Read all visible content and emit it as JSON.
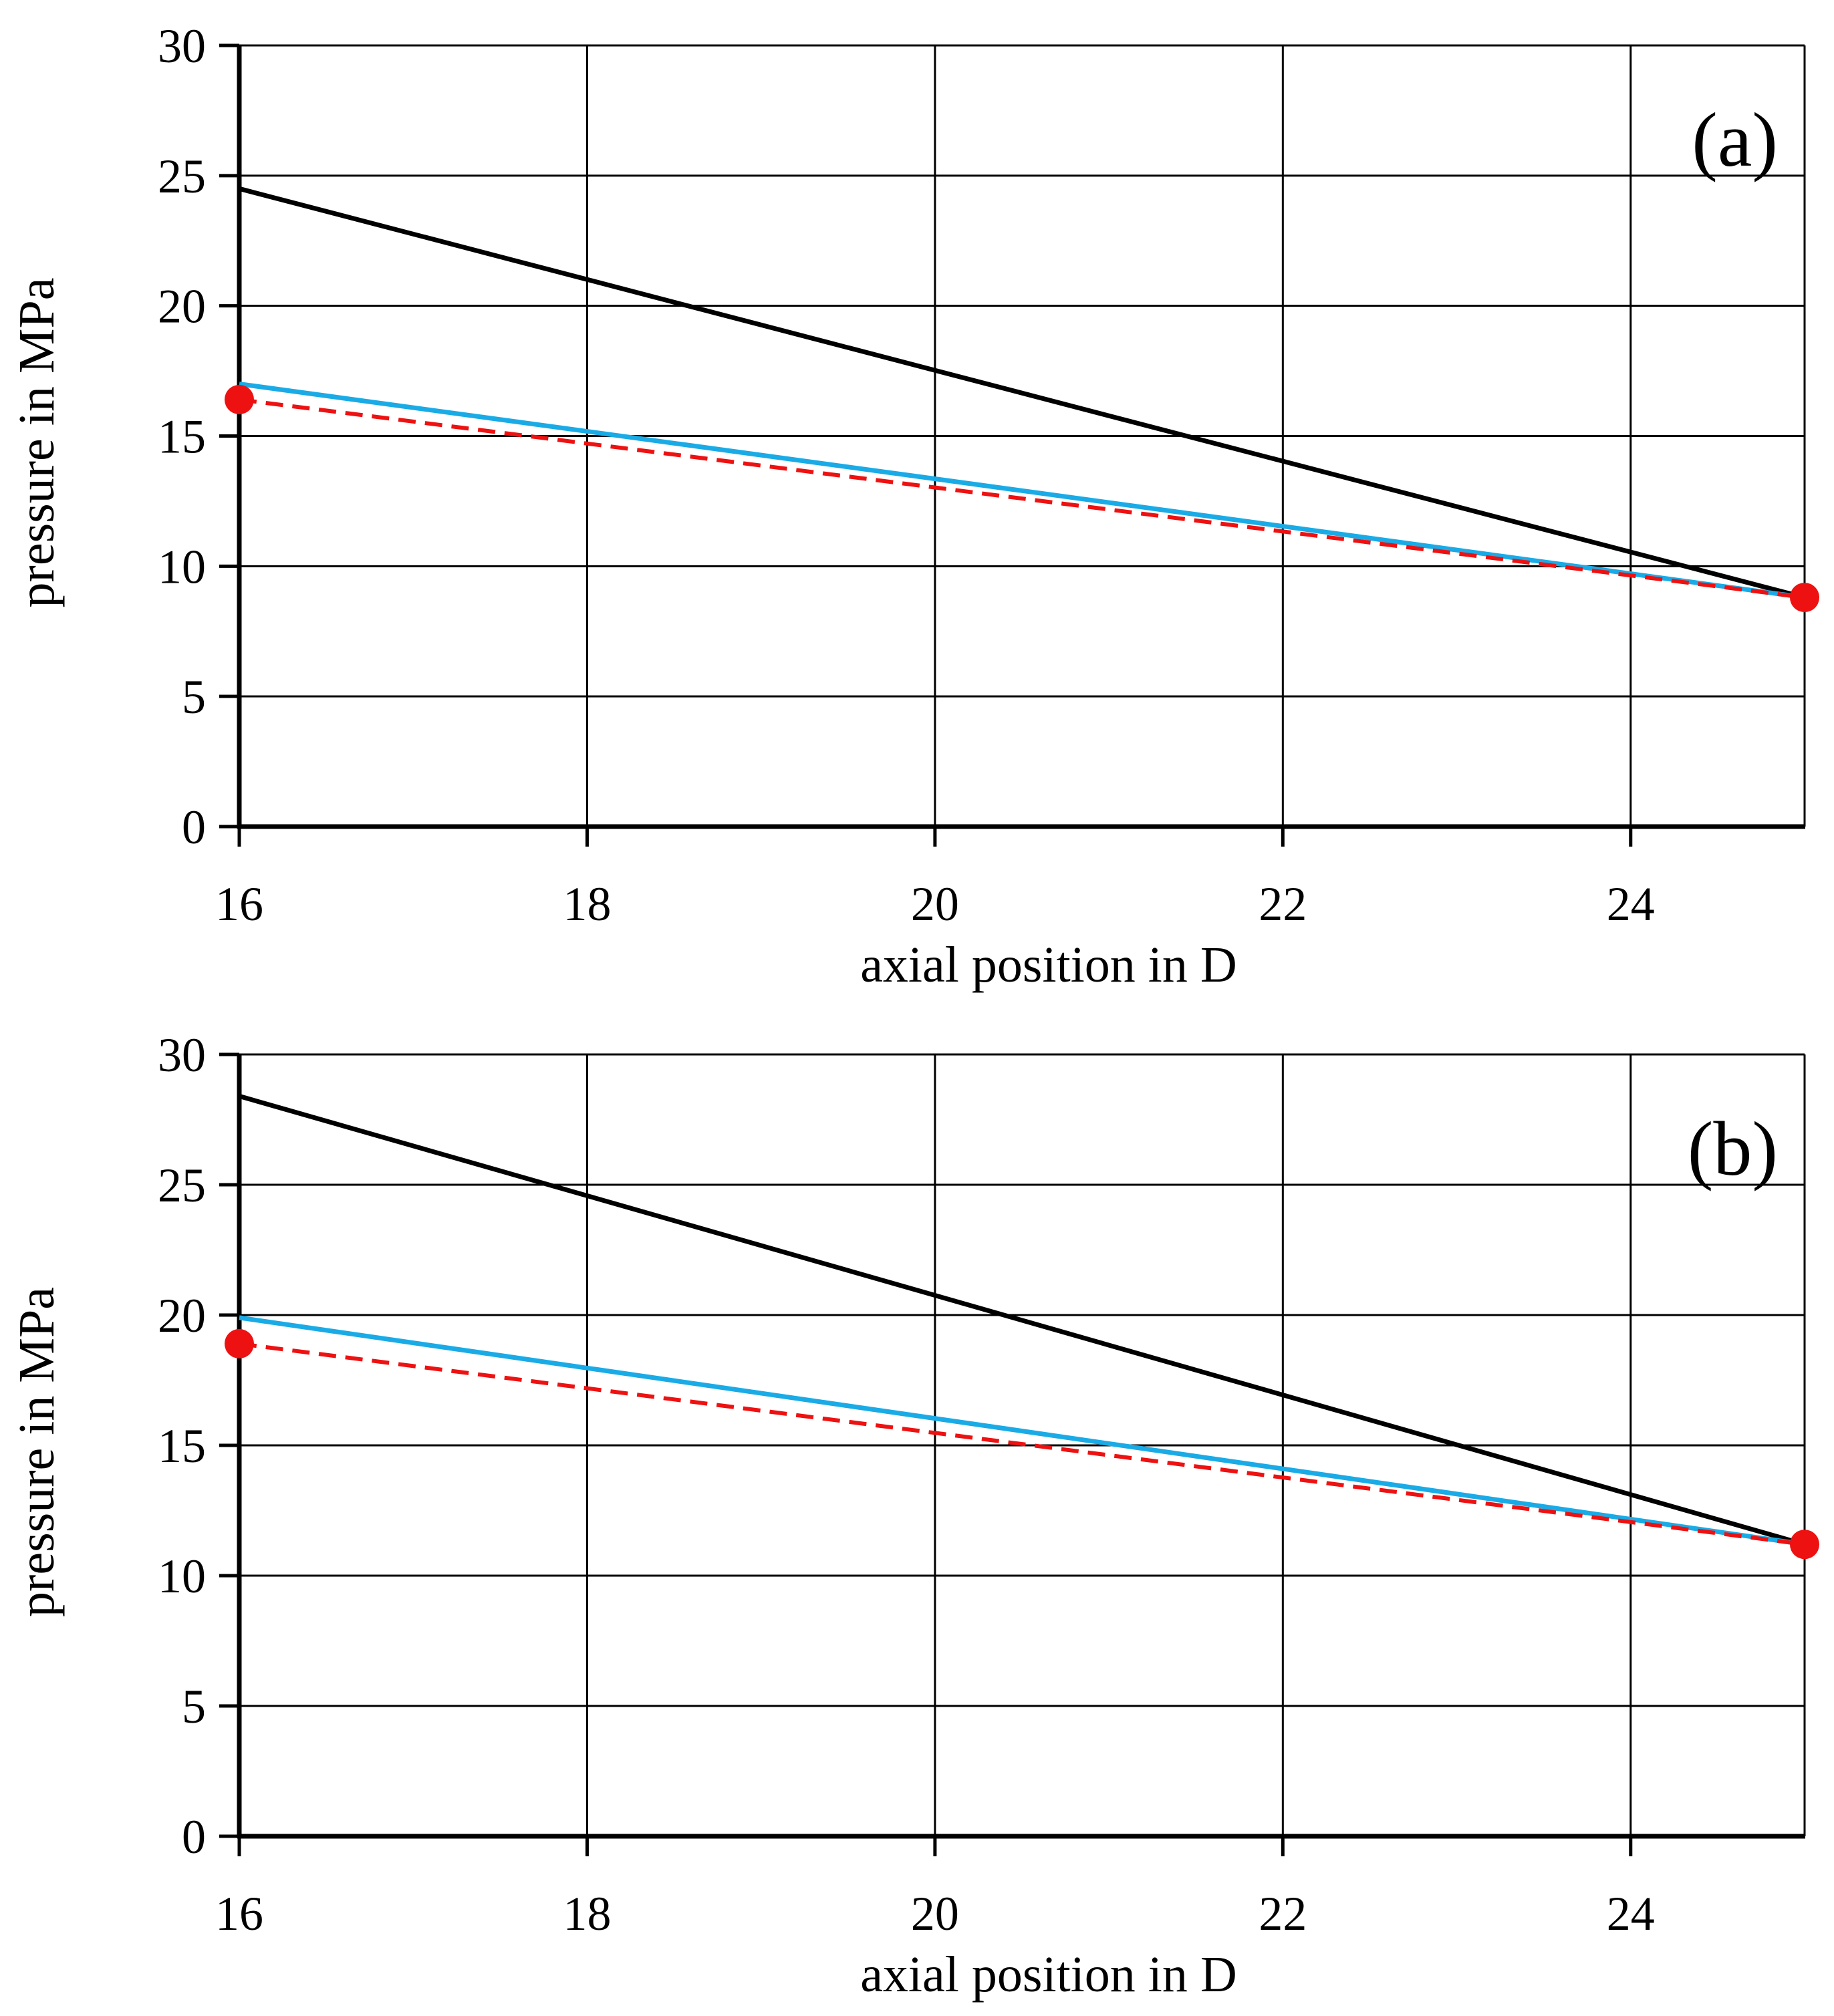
{
  "chart_data": [
    {
      "type": "line",
      "panel_label": "(a)",
      "xlabel": "axial position in D",
      "ylabel": "pressure in MPa",
      "xlim": [
        16,
        25
      ],
      "ylim": [
        0,
        30
      ],
      "xticks": [
        16,
        18,
        20,
        22,
        24
      ],
      "yticks": [
        0,
        5,
        10,
        15,
        20,
        25,
        30
      ],
      "grid": true,
      "series": [
        {
          "name": "black line",
          "color": "#000000",
          "style": "solid",
          "x": [
            16,
            25
          ],
          "y": [
            24.5,
            8.8
          ]
        },
        {
          "name": "blue line",
          "color": "#1aabe6",
          "style": "solid",
          "x": [
            16,
            25
          ],
          "y": [
            17.0,
            8.8
          ]
        },
        {
          "name": "red dashed line",
          "color": "#ee1111",
          "style": "dashed",
          "x": [
            16,
            25
          ],
          "y": [
            16.4,
            8.8
          ]
        }
      ],
      "markers": {
        "color": "#ee1111",
        "x": [
          16,
          25
        ],
        "y": [
          16.4,
          8.8
        ]
      }
    },
    {
      "type": "line",
      "panel_label": "(b)",
      "xlabel": "axial position in D",
      "ylabel": "pressure in MPa",
      "xlim": [
        16,
        25
      ],
      "ylim": [
        0,
        30
      ],
      "xticks": [
        16,
        18,
        20,
        22,
        24
      ],
      "yticks": [
        0,
        5,
        10,
        15,
        20,
        25,
        30
      ],
      "grid": true,
      "series": [
        {
          "name": "black line",
          "color": "#000000",
          "style": "solid",
          "x": [
            16,
            25
          ],
          "y": [
            28.4,
            11.2
          ]
        },
        {
          "name": "blue line",
          "color": "#1aabe6",
          "style": "solid",
          "x": [
            16,
            25
          ],
          "y": [
            19.9,
            11.2
          ]
        },
        {
          "name": "red dashed line",
          "color": "#ee1111",
          "style": "dashed",
          "x": [
            16,
            25
          ],
          "y": [
            18.9,
            11.2
          ]
        }
      ],
      "markers": {
        "color": "#ee1111",
        "x": [
          16,
          25
        ],
        "y": [
          18.9,
          11.2
        ]
      }
    }
  ]
}
